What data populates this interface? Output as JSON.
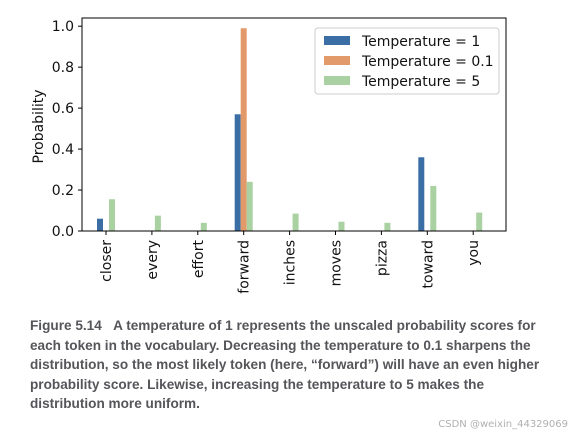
{
  "chart_data": {
    "type": "bar",
    "categories": [
      "closer",
      "every",
      "effort",
      "forward",
      "inches",
      "moves",
      "pizza",
      "toward",
      "you"
    ],
    "series": [
      {
        "name": "Temperature = 1",
        "color": "#3a6ea5",
        "values": [
          0.06,
          0.0,
          0.0,
          0.57,
          0.0,
          0.0,
          0.0,
          0.36,
          0.0
        ]
      },
      {
        "name": "Temperature = 0.1",
        "color": "#e39a6a",
        "values": [
          0.0,
          0.0,
          0.0,
          0.99,
          0.0,
          0.0,
          0.0,
          0.0,
          0.0
        ]
      },
      {
        "name": "Temperature = 5",
        "color": "#a9d1a1",
        "values": [
          0.155,
          0.075,
          0.04,
          0.24,
          0.085,
          0.045,
          0.04,
          0.22,
          0.09
        ]
      }
    ],
    "ylabel": "Probability",
    "xlabel": "",
    "ylim": [
      0,
      1.04
    ],
    "yticks": [
      "0.0",
      "0.2",
      "0.4",
      "0.6",
      "0.8",
      "1.0"
    ],
    "ytick_values": [
      0,
      0.2,
      0.4,
      0.6,
      0.8,
      1.0
    ],
    "grid": false,
    "legend_position": "top-right"
  },
  "caption": {
    "label": "Figure 5.14",
    "text": "A temperature of 1 represents the unscaled probability scores for each token in the vocabulary. Decreasing the temperature to 0.1 sharpens the distribution, so the most likely token (here, “forward”) will have an even higher probability score. Likewise, increasing the temperature to 5 makes the distribution more uniform."
  },
  "watermark": "CSDN @weixin_44329069"
}
